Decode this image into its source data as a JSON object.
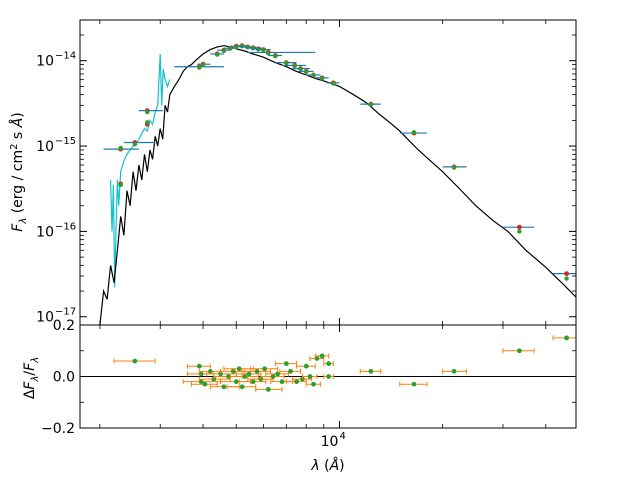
{
  "chart_data": [
    {
      "type": "line",
      "panel": "top",
      "xscale": "log",
      "yscale": "log",
      "xlim": [
        1750,
        49000
      ],
      "ylim": [
        8e-18,
        3e-14
      ],
      "ylabel": "F_λ (erg / cm² s Å)",
      "yticks": [
        1e-17,
        1e-16,
        1e-15,
        1e-14
      ],
      "ytick_labels": [
        "10",
        "10",
        "10",
        "10"
      ],
      "ytick_exponents": [
        "−17",
        "−16",
        "−15",
        "−14"
      ],
      "model_spectrum": {
        "color": "#000000",
        "x": [
          2000,
          2050,
          2100,
          2150,
          2200,
          2250,
          2300,
          2350,
          2400,
          2450,
          2500,
          2550,
          2600,
          2650,
          2700,
          2750,
          2800,
          2850,
          2900,
          2950,
          3000,
          3050,
          3100,
          3150,
          3200,
          3300,
          3400,
          3500,
          3600,
          3700,
          3800,
          3900,
          4000,
          4200,
          4400,
          4600,
          4800,
          5000,
          5300,
          5600,
          6000,
          6500,
          7000,
          7500,
          8000,
          8500,
          9000,
          9500,
          10000,
          11000,
          12000,
          13000,
          14000,
          15000,
          16000,
          17000,
          18000,
          20000,
          22000,
          25000,
          28000,
          31000,
          35000,
          40000,
          45000,
          49000
        ],
        "y": [
          8e-18,
          2e-17,
          1.6e-17,
          4e-17,
          2.5e-17,
          6e-17,
          1.5e-16,
          9e-17,
          3e-16,
          2e-16,
          5e-16,
          3e-16,
          6e-16,
          4e-16,
          8e-16,
          5e-16,
          9e-16,
          7e-16,
          1.3e-15,
          1e-15,
          1.6e-15,
          1.2e-15,
          3e-15,
          2.5e-15,
          4e-15,
          5e-15,
          6e-15,
          7.5e-15,
          8.5e-15,
          9e-15,
          1e-14,
          1.1e-14,
          1.2e-14,
          1.35e-14,
          1.45e-14,
          1.5e-14,
          1.45e-14,
          1.38e-14,
          1.3e-14,
          1.2e-14,
          1.1e-14,
          9.5e-15,
          8.5e-15,
          7.5e-15,
          6.8e-15,
          6.2e-15,
          5.8e-15,
          5.4e-15,
          5e-15,
          4e-15,
          3.2e-15,
          2.4e-15,
          1.9e-15,
          1.5e-15,
          1.15e-15,
          9e-16,
          7.3e-16,
          5e-16,
          3.4e-16,
          2e-16,
          1.35e-16,
          1e-16,
          6e-17,
          3.8e-17,
          2.4e-17,
          1.7e-17
        ]
      },
      "observed_spectrum": {
        "color": "#17becf",
        "x": [
          2150,
          2170,
          2190,
          2210,
          2230,
          2250,
          2270,
          2300,
          2330,
          2360,
          2400,
          2450,
          2500,
          2550,
          2600,
          2650,
          2700,
          2750,
          2800,
          2850,
          2900,
          2950,
          3000,
          3030,
          3060,
          3100,
          3150,
          3200
        ],
        "y": [
          4e-16,
          1e-16,
          3.5e-16,
          2.2e-17,
          1.2e-16,
          4e-16,
          2e-16,
          5e-16,
          6e-16,
          7e-16,
          8e-16,
          9e-16,
          1e-15,
          1.1e-15,
          1.2e-15,
          1.4e-15,
          1.6e-15,
          1.5e-15,
          2e-15,
          1.8e-15,
          2.5e-15,
          3e-15,
          1.2e-14,
          3e-15,
          8e-15,
          6e-15,
          5e-15,
          6e-15
        ]
      },
      "photometry": {
        "error_bar_color": "#1f77b4",
        "observed_color": "#d62728",
        "model_color": "#2ca02c",
        "points": [
          {
            "x": 2300,
            "xerr": [
              2050,
              2600
            ],
            "obs": 9.2e-16,
            "model": 9.5e-16
          },
          {
            "x": 2300,
            "xerr": [
              2300,
              2300
            ],
            "obs": 3.6e-16,
            "model": 3.5e-16
          },
          {
            "x": 2530,
            "xerr": [
              2350,
              2900
            ],
            "obs": 1.1e-15,
            "model": 1.05e-15
          },
          {
            "x": 2750,
            "xerr": [
              2600,
              3050
            ],
            "obs": 2.6e-15,
            "model": 2.5e-15
          },
          {
            "x": 2750,
            "xerr": [
              2750,
              2750
            ],
            "obs": 1.8e-15,
            "model": 1.9e-15
          },
          {
            "x": 3900,
            "xerr": [
              3300,
              4600
            ],
            "obs": 8.5e-15,
            "model": 8.3e-15
          },
          {
            "x": 4000,
            "xerr": [
              3850,
              4200
            ],
            "obs": 9.1e-15,
            "model": 9e-15
          },
          {
            "x": 4400,
            "xerr": [
              4200,
              4600
            ],
            "obs": 1.2e-14,
            "model": 1.18e-14
          },
          {
            "x": 4600,
            "xerr": [
              4400,
              4800
            ],
            "obs": 1.33e-14,
            "model": 1.3e-14
          },
          {
            "x": 4800,
            "xerr": [
              4600,
              5000
            ],
            "obs": 1.4e-14,
            "model": 1.4e-14
          },
          {
            "x": 5000,
            "xerr": [
              4800,
              5200
            ],
            "obs": 1.48e-14,
            "model": 1.45e-14
          },
          {
            "x": 5200,
            "xerr": [
              5000,
              5400
            ],
            "obs": 1.5e-14,
            "model": 1.48e-14
          },
          {
            "x": 5400,
            "xerr": [
              5100,
              5700
            ],
            "obs": 1.45e-14,
            "model": 1.44e-14
          },
          {
            "x": 5600,
            "xerr": [
              5300,
              5900
            ],
            "obs": 1.42e-14,
            "model": 1.4e-14
          },
          {
            "x": 5800,
            "xerr": [
              5500,
              6100
            ],
            "obs": 1.38e-14,
            "model": 1.36e-14
          },
          {
            "x": 6000,
            "xerr": [
              5700,
              6300
            ],
            "obs": 1.35e-14,
            "model": 1.33e-14
          },
          {
            "x": 6200,
            "xerr": [
              5400,
              8500
            ],
            "obs": 1.25e-14,
            "model": 1.22e-14
          },
          {
            "x": 6500,
            "xerr": [
              6200,
              6800
            ],
            "obs": 1.15e-14,
            "model": 1.13e-14
          },
          {
            "x": 7000,
            "xerr": [
              6500,
              7500
            ],
            "obs": 9.5e-15,
            "model": 9.4e-15
          },
          {
            "x": 7400,
            "xerr": [
              6800,
              8000
            ],
            "obs": 8.8e-15,
            "model": 8.7e-15
          },
          {
            "x": 7700,
            "xerr": [
              7300,
              8200
            ],
            "obs": 8.1e-15,
            "model": 8e-15
          },
          {
            "x": 8000,
            "xerr": [
              7600,
              8400
            ],
            "obs": 7.5e-15,
            "model": 7.4e-15
          },
          {
            "x": 8400,
            "xerr": [
              8000,
              8800
            ],
            "obs": 6.8e-15,
            "model": 6.8e-15
          },
          {
            "x": 8900,
            "xerr": [
              8500,
              9300
            ],
            "obs": 6.3e-15,
            "model": 6.2e-15
          },
          {
            "x": 9600,
            "xerr": [
              9200,
              10000
            ],
            "obs": 5.5e-15,
            "model": 5.4e-15
          },
          {
            "x": 12350,
            "xerr": [
              11500,
              13200
            ],
            "obs": 3.1e-15,
            "model": 3.05e-15
          },
          {
            "x": 16500,
            "xerr": [
              15000,
              18000
            ],
            "obs": 1.42e-15,
            "model": 1.45e-15
          },
          {
            "x": 21600,
            "xerr": [
              20000,
              23500
            ],
            "obs": 5.7e-16,
            "model": 5.6e-16
          },
          {
            "x": 33500,
            "xerr": [
              30000,
              37000
            ],
            "obs": 1.12e-16,
            "model": 1e-16
          },
          {
            "x": 46000,
            "xerr": [
              42000,
              50000
            ],
            "obs": 3.2e-17,
            "model": 2.8e-17
          }
        ]
      }
    },
    {
      "type": "scatter",
      "panel": "bottom",
      "xscale": "log",
      "xlim": [
        1750,
        49000
      ],
      "ylim": [
        -0.2,
        0.2
      ],
      "xlabel": "λ (Å)",
      "ylabel": "ΔF_λ/F_λ",
      "yticks": [
        -0.2,
        0.0,
        0.2
      ],
      "ytick_labels": [
        "−0.2",
        "0.0",
        "0.2"
      ],
      "xticks": [
        10000
      ],
      "xtick_labels": [
        "10"
      ],
      "xtick_exponents": [
        "4"
      ],
      "point_color": "#2ca02c",
      "error_bar_color": "#ff7f0e",
      "points": [
        {
          "x": 2530,
          "xerr": [
            2200,
            2900
          ],
          "y": 0.06
        },
        {
          "x": 3900,
          "xerr": [
            3600,
            4200
          ],
          "y": 0.04
        },
        {
          "x": 3950,
          "xerr": [
            3600,
            4300
          ],
          "y": 0.01
        },
        {
          "x": 3950,
          "xerr": [
            3500,
            4500
          ],
          "y": -0.02
        },
        {
          "x": 4050,
          "xerr": [
            3700,
            4400
          ],
          "y": -0.03
        },
        {
          "x": 4200,
          "xerr": [
            3900,
            4500
          ],
          "y": 0.02
        },
        {
          "x": 4300,
          "xerr": [
            3900,
            4800
          ],
          "y": -0.01
        },
        {
          "x": 4500,
          "xerr": [
            4100,
            5000
          ],
          "y": 0.01
        },
        {
          "x": 4600,
          "xerr": [
            4200,
            5100
          ],
          "y": -0.04
        },
        {
          "x": 4750,
          "xerr": [
            4300,
            5200
          ],
          "y": 0.0
        },
        {
          "x": 4900,
          "xerr": [
            4500,
            5300
          ],
          "y": 0.02
        },
        {
          "x": 5000,
          "xerr": [
            4500,
            5500
          ],
          "y": -0.02
        },
        {
          "x": 5100,
          "xerr": [
            4600,
            5600
          ],
          "y": 0.03
        },
        {
          "x": 5200,
          "xerr": [
            4700,
            5700
          ],
          "y": -0.04
        },
        {
          "x": 5300,
          "xerr": [
            4800,
            5800
          ],
          "y": 0.0
        },
        {
          "x": 5450,
          "xerr": [
            5000,
            5900
          ],
          "y": 0.01
        },
        {
          "x": 5600,
          "xerr": [
            5100,
            6100
          ],
          "y": -0.02
        },
        {
          "x": 5750,
          "xerr": [
            5200,
            6300
          ],
          "y": 0.02
        },
        {
          "x": 5900,
          "xerr": [
            5400,
            6400
          ],
          "y": -0.01
        },
        {
          "x": 6050,
          "xerr": [
            5500,
            6600
          ],
          "y": 0.03
        },
        {
          "x": 6200,
          "xerr": [
            5700,
            6800
          ],
          "y": -0.05
        },
        {
          "x": 6400,
          "xerr": [
            5900,
            6900
          ],
          "y": 0.0
        },
        {
          "x": 6600,
          "xerr": [
            6100,
            7100
          ],
          "y": 0.01
        },
        {
          "x": 6800,
          "xerr": [
            6300,
            7300
          ],
          "y": -0.02
        },
        {
          "x": 7000,
          "xerr": [
            6500,
            7500
          ],
          "y": 0.05
        },
        {
          "x": 7200,
          "xerr": [
            6700,
            7700
          ],
          "y": 0.02
        },
        {
          "x": 7500,
          "xerr": [
            7000,
            8000
          ],
          "y": -0.02
        },
        {
          "x": 7800,
          "xerr": [
            7300,
            8300
          ],
          "y": -0.01
        },
        {
          "x": 8000,
          "xerr": [
            7500,
            8500
          ],
          "y": 0.04
        },
        {
          "x": 8200,
          "xerr": [
            7800,
            8600
          ],
          "y": 0.0
        },
        {
          "x": 8400,
          "xerr": [
            8000,
            8800
          ],
          "y": -0.03
        },
        {
          "x": 8600,
          "xerr": [
            8200,
            9000
          ],
          "y": 0.07
        },
        {
          "x": 8900,
          "xerr": [
            8500,
            9300
          ],
          "y": 0.08
        },
        {
          "x": 9300,
          "xerr": [
            9000,
            9600
          ],
          "y": 0.05
        },
        {
          "x": 9300,
          "xerr": [
            9000,
            9600
          ],
          "y": 0.0
        },
        {
          "x": 12350,
          "xerr": [
            11500,
            13200
          ],
          "y": 0.02
        },
        {
          "x": 16500,
          "xerr": [
            15000,
            18000
          ],
          "y": -0.03
        },
        {
          "x": 21600,
          "xerr": [
            20000,
            23500
          ],
          "y": 0.02
        },
        {
          "x": 33500,
          "xerr": [
            30000,
            37000
          ],
          "y": 0.1
        },
        {
          "x": 46000,
          "xerr": [
            42000,
            50000
          ],
          "y": 0.15
        }
      ]
    }
  ]
}
